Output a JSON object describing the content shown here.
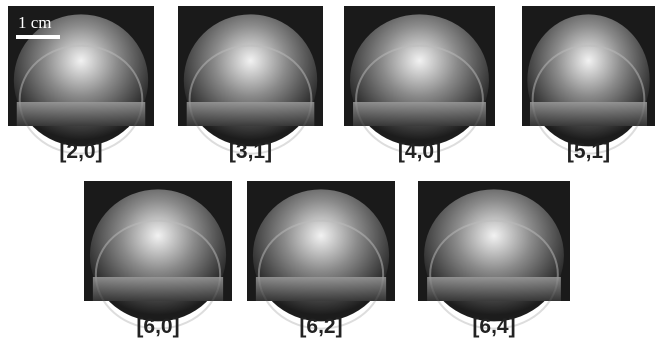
{
  "scale_bar": {
    "label": "1 cm"
  },
  "panels": [
    {
      "label": "[2,0]"
    },
    {
      "label": "[3,1]"
    },
    {
      "label": "[4,0]"
    },
    {
      "label": "[5,1]"
    },
    {
      "label": "[6,0]"
    },
    {
      "label": "[6,2]"
    },
    {
      "label": "[6,4]"
    }
  ]
}
